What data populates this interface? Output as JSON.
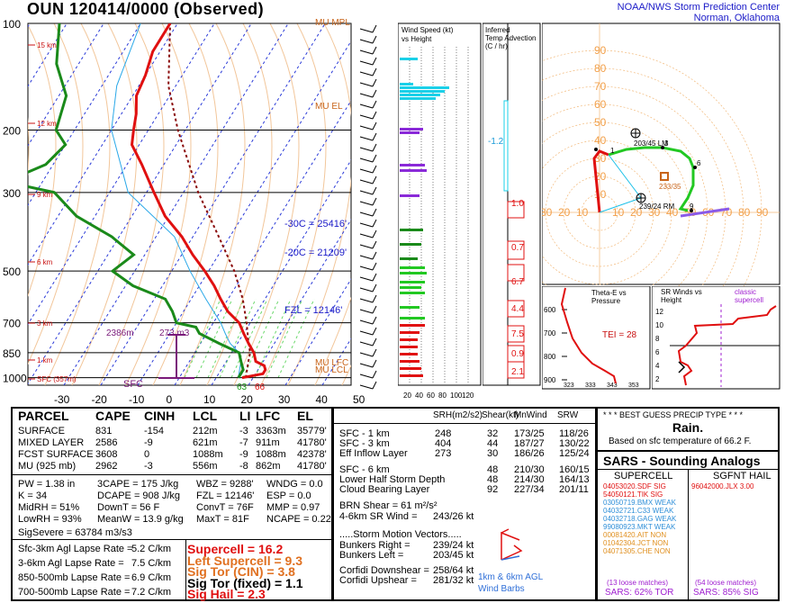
{
  "header": {
    "title": "OUN   120414/0000  (Observed)",
    "org_line1": "NOAA/NWS Storm Prediction Center",
    "org_line2": "Norman, Oklahoma"
  },
  "skewt": {
    "pressure_ticks": [
      "100",
      "200",
      "300",
      "500",
      "700",
      "850",
      "1000"
    ],
    "temp_ticks": [
      "-30",
      "-20",
      "-10",
      "0",
      "10",
      "20",
      "30",
      "40",
      "50"
    ],
    "height_labels": [
      "15 km",
      "12 km",
      "9 km",
      "6 km",
      "3 km",
      "1 km",
      "SFC (357m)"
    ],
    "mu_mpl": "MU MPL",
    "mu_el": "MU EL",
    "mu_lfc": "MU LFC",
    "mu_lcl": "MU LCL",
    "c30": "-30C = 25416'",
    "c20": "-20C = 21209'",
    "fzl": "FZL = 12146'",
    "h2386": "2386m",
    "h273": "273 m3",
    "sfc": "SFC",
    "t63": "63",
    "t66": "66"
  },
  "wind_panel": {
    "title1": "Wind Speed (kt)",
    "title2": "vs Height",
    "ticks": [
      "20",
      "40",
      "60",
      "80",
      "100",
      "120"
    ]
  },
  "tadv_panel": {
    "title1": "Inferred",
    "title2": "Temp Advection",
    "title3": "(C / hr)",
    "values": [
      "-1.2",
      "1.0",
      "0.7",
      "6.7",
      "4.4",
      "7.5",
      "0.9",
      "2.1"
    ]
  },
  "hodo": {
    "ring_labels": [
      "90",
      "80",
      "70",
      "60",
      "50",
      "40",
      "30",
      "20",
      "10"
    ],
    "lm": "203/45 LM",
    "rm": "239/24 RM",
    "mean": "233/35"
  },
  "theta_panel": {
    "title1": "Theta-E vs",
    "title2": "Pressure",
    "tei": "TEI = 28",
    "p_ticks": [
      "600",
      "700",
      "800",
      "900"
    ],
    "x_ticks": [
      "323",
      "333",
      "343",
      "353"
    ]
  },
  "srw_panel": {
    "title1": "SR Winds vs",
    "title2": "Height",
    "classic": "classic",
    "supercell": "supercell",
    "y_ticks": [
      "12",
      "10",
      "8",
      "6",
      "4",
      "2"
    ]
  },
  "parcel": {
    "headers": [
      "PARCEL",
      "CAPE",
      "CINH",
      "LCL",
      "LI",
      "LFC",
      "EL"
    ],
    "rows": [
      [
        "SURFACE",
        "831",
        "-154",
        "212m",
        "-3",
        "3363m",
        "35779'"
      ],
      [
        "MIXED LAYER",
        "2586",
        "-9",
        "621m",
        "-7",
        "911m",
        "41780'"
      ],
      [
        "FCST SURFACE",
        "3608",
        "0",
        "1088m",
        "-9",
        "1088m",
        "42378'"
      ],
      [
        "MU   (925 mb)",
        "2962",
        "-3",
        "556m",
        "-8",
        "862m",
        "41780'"
      ]
    ]
  },
  "indices": [
    [
      "PW = 1.38 in",
      "3CAPE = 175 J/kg",
      "WBZ = 9288'",
      "WNDG = 0.0"
    ],
    [
      "K = 34",
      "DCAPE = 908 J/kg",
      "FZL = 12146'",
      "ESP = 0.0"
    ],
    [
      "MidRH = 51%",
      "DownT = 56 F",
      "ConvT = 76F",
      "MMP = 0.97"
    ],
    [
      "LowRH = 93%",
      "MeanW = 13.9 g/kg",
      "MaxT = 81F",
      "NCAPE = 0.22"
    ]
  ],
  "sigsevere": "SigSevere = 63784 m3/s3",
  "lapse": [
    [
      "Sfc-3km Agl Lapse Rate =",
      "5.2 C/km"
    ],
    [
      "3-6km Agl Lapse Rate =",
      "7.5 C/km"
    ],
    [
      "850-500mb Lapse Rate =",
      "6.9 C/km"
    ],
    [
      "700-500mb Lapse Rate =",
      "7.2 C/km"
    ]
  ],
  "composite": [
    {
      "label": "Supercell = 16.2",
      "color": "#e01010"
    },
    {
      "label": "Left Supercell = 9.3",
      "color": "#e07020"
    },
    {
      "label": "Sig Tor (CIN) = 3.8",
      "color": "#e07020"
    },
    {
      "label": "Sig Tor (fixed) = 1.1",
      "color": "#000000"
    },
    {
      "label": "Sig Hail = 2.3",
      "color": "#e01010"
    }
  ],
  "kin_headers": [
    "SRH(m2/s2)",
    "Shear(kt)",
    "MnWind",
    "SRW"
  ],
  "kin_rows": [
    [
      "SFC - 1 km",
      "248",
      "32",
      "173/25",
      "118/26"
    ],
    [
      "SFC - 3 km",
      "404",
      "44",
      "187/27",
      "130/22"
    ],
    [
      "Eff Inflow Layer",
      "273",
      "30",
      "186/26",
      "125/24"
    ],
    [
      "SFC - 6 km",
      "",
      "48",
      "210/30",
      "160/15"
    ],
    [
      "Lower Half Storm Depth",
      "",
      "48",
      "214/30",
      "164/13"
    ],
    [
      "Cloud Bearing Layer",
      "",
      "92",
      "227/34",
      "201/11"
    ]
  ],
  "brn": "BRN Shear =  61 m²/s²",
  "sr46": [
    "4-6km SR Wind =",
    "243/26 kt"
  ],
  "storm_motion_title": ".....Storm Motion Vectors.....",
  "storm_motion": [
    [
      "Bunkers Right =",
      "239/24 kt"
    ],
    [
      "Bunkers Left =",
      "203/45 kt"
    ]
  ],
  "corfidi": [
    [
      "Corfidi Downshear =",
      "258/64 kt"
    ],
    [
      "Corfidi Upshear =",
      "281/32 kt"
    ]
  ],
  "barb_label1": "1km & 6km AGL",
  "barb_label2": "Wind Barbs",
  "precip": {
    "title": "* * * BEST GUESS PRECIP TYPE * * *",
    "type": "Rain.",
    "note": "Based on sfc temperature of 66.2 F."
  },
  "sars": {
    "title": "SARS - Sounding Analogs",
    "supercell_title": "SUPERCELL",
    "hail_title": "SGFNT HAIL",
    "supercell": [
      {
        "text": "04053020.SDF  SIG",
        "color": "#e01010"
      },
      {
        "text": "54050121.TIK   SIG",
        "color": "#e01010"
      },
      {
        "text": "03050719.BMX  WEAK",
        "color": "#2f8fd8"
      },
      {
        "text": "04032721.C33  WEAK",
        "color": "#2f8fd8"
      },
      {
        "text": "04032718.GAG  WEAK",
        "color": "#2f8fd8"
      },
      {
        "text": "99080923.MKT  WEAK",
        "color": "#2f8fd8"
      },
      {
        "text": "00081420.AIT   NON",
        "color": "#e09020"
      },
      {
        "text": "01042304.JCT   NON",
        "color": "#e09020"
      },
      {
        "text": "04071305.CHE  NON",
        "color": "#e09020"
      }
    ],
    "hail": [
      {
        "text": "96042000.JLX     3.00",
        "color": "#e01010"
      }
    ],
    "loose_left": "(13 loose matches)",
    "loose_right": "(54 loose matches)",
    "pct_left": "SARS:  62% TOR",
    "pct_right": "SARS:  85% SIG"
  },
  "chart_data": {
    "type": "line",
    "title": "OUN   120414/0000  (Observed)",
    "xlabel": "",
    "ylabel": "",
    "temperature_profile_C": [
      [
        1000,
        19
      ],
      [
        925,
        22
      ],
      [
        850,
        18
      ],
      [
        700,
        10
      ],
      [
        500,
        -8
      ],
      [
        300,
        -32
      ],
      [
        200,
        -52
      ],
      [
        100,
        -60
      ]
    ],
    "dewpoint_profile_C": [
      [
        1000,
        17
      ],
      [
        925,
        16
      ],
      [
        850,
        14
      ],
      [
        700,
        2
      ],
      [
        500,
        -28
      ],
      [
        300,
        -56
      ],
      [
        200,
        -60
      ],
      [
        100,
        -78
      ]
    ],
    "hodograph_points": [
      {
        "label": "1",
        "u": 5,
        "v": 32
      },
      {
        "label": "3",
        "u": 35,
        "v": 36
      },
      {
        "label": "6",
        "u": 53,
        "v": 25
      },
      {
        "label": "9",
        "u": 49,
        "v": 1
      }
    ],
    "wind_speed_kt_by_height_km": [
      [
        1,
        40
      ],
      [
        2,
        35
      ],
      [
        3,
        30
      ],
      [
        4,
        25
      ],
      [
        6,
        30
      ],
      [
        8,
        35
      ],
      [
        10,
        40
      ],
      [
        12,
        45
      ],
      [
        14,
        40
      ],
      [
        16,
        30
      ]
    ]
  }
}
